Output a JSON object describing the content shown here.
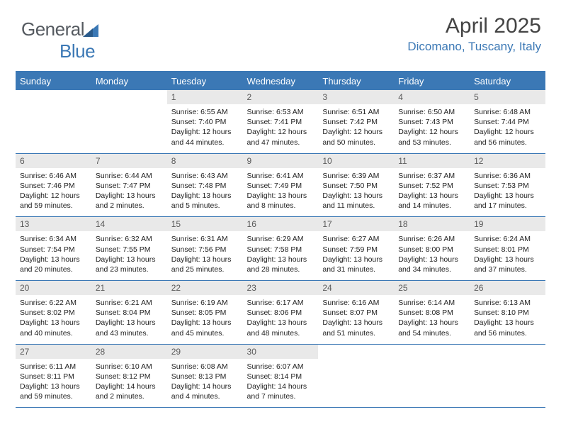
{
  "branding": {
    "logo_part1": "General",
    "logo_part2": "Blue"
  },
  "header": {
    "month_title": "April 2025",
    "location": "Dicomano, Tuscany, Italy"
  },
  "colors": {
    "accent": "#3b78b5",
    "daynum_bg": "#e9e9e9",
    "text": "#222222",
    "header_text": "#ffffff"
  },
  "typography": {
    "month_title_fontsize": 30,
    "location_fontsize": 17,
    "dayheader_fontsize": 13,
    "daynum_fontsize": 12,
    "body_fontsize": 10.5
  },
  "calendar": {
    "day_headers": [
      "Sunday",
      "Monday",
      "Tuesday",
      "Wednesday",
      "Thursday",
      "Friday",
      "Saturday"
    ],
    "weeks": [
      [
        {
          "num": "",
          "sunrise": "",
          "sunset": "",
          "daylight": ""
        },
        {
          "num": "",
          "sunrise": "",
          "sunset": "",
          "daylight": ""
        },
        {
          "num": "1",
          "sunrise": "Sunrise: 6:55 AM",
          "sunset": "Sunset: 7:40 PM",
          "daylight": "Daylight: 12 hours and 44 minutes."
        },
        {
          "num": "2",
          "sunrise": "Sunrise: 6:53 AM",
          "sunset": "Sunset: 7:41 PM",
          "daylight": "Daylight: 12 hours and 47 minutes."
        },
        {
          "num": "3",
          "sunrise": "Sunrise: 6:51 AM",
          "sunset": "Sunset: 7:42 PM",
          "daylight": "Daylight: 12 hours and 50 minutes."
        },
        {
          "num": "4",
          "sunrise": "Sunrise: 6:50 AM",
          "sunset": "Sunset: 7:43 PM",
          "daylight": "Daylight: 12 hours and 53 minutes."
        },
        {
          "num": "5",
          "sunrise": "Sunrise: 6:48 AM",
          "sunset": "Sunset: 7:44 PM",
          "daylight": "Daylight: 12 hours and 56 minutes."
        }
      ],
      [
        {
          "num": "6",
          "sunrise": "Sunrise: 6:46 AM",
          "sunset": "Sunset: 7:46 PM",
          "daylight": "Daylight: 12 hours and 59 minutes."
        },
        {
          "num": "7",
          "sunrise": "Sunrise: 6:44 AM",
          "sunset": "Sunset: 7:47 PM",
          "daylight": "Daylight: 13 hours and 2 minutes."
        },
        {
          "num": "8",
          "sunrise": "Sunrise: 6:43 AM",
          "sunset": "Sunset: 7:48 PM",
          "daylight": "Daylight: 13 hours and 5 minutes."
        },
        {
          "num": "9",
          "sunrise": "Sunrise: 6:41 AM",
          "sunset": "Sunset: 7:49 PM",
          "daylight": "Daylight: 13 hours and 8 minutes."
        },
        {
          "num": "10",
          "sunrise": "Sunrise: 6:39 AM",
          "sunset": "Sunset: 7:50 PM",
          "daylight": "Daylight: 13 hours and 11 minutes."
        },
        {
          "num": "11",
          "sunrise": "Sunrise: 6:37 AM",
          "sunset": "Sunset: 7:52 PM",
          "daylight": "Daylight: 13 hours and 14 minutes."
        },
        {
          "num": "12",
          "sunrise": "Sunrise: 6:36 AM",
          "sunset": "Sunset: 7:53 PM",
          "daylight": "Daylight: 13 hours and 17 minutes."
        }
      ],
      [
        {
          "num": "13",
          "sunrise": "Sunrise: 6:34 AM",
          "sunset": "Sunset: 7:54 PM",
          "daylight": "Daylight: 13 hours and 20 minutes."
        },
        {
          "num": "14",
          "sunrise": "Sunrise: 6:32 AM",
          "sunset": "Sunset: 7:55 PM",
          "daylight": "Daylight: 13 hours and 23 minutes."
        },
        {
          "num": "15",
          "sunrise": "Sunrise: 6:31 AM",
          "sunset": "Sunset: 7:56 PM",
          "daylight": "Daylight: 13 hours and 25 minutes."
        },
        {
          "num": "16",
          "sunrise": "Sunrise: 6:29 AM",
          "sunset": "Sunset: 7:58 PM",
          "daylight": "Daylight: 13 hours and 28 minutes."
        },
        {
          "num": "17",
          "sunrise": "Sunrise: 6:27 AM",
          "sunset": "Sunset: 7:59 PM",
          "daylight": "Daylight: 13 hours and 31 minutes."
        },
        {
          "num": "18",
          "sunrise": "Sunrise: 6:26 AM",
          "sunset": "Sunset: 8:00 PM",
          "daylight": "Daylight: 13 hours and 34 minutes."
        },
        {
          "num": "19",
          "sunrise": "Sunrise: 6:24 AM",
          "sunset": "Sunset: 8:01 PM",
          "daylight": "Daylight: 13 hours and 37 minutes."
        }
      ],
      [
        {
          "num": "20",
          "sunrise": "Sunrise: 6:22 AM",
          "sunset": "Sunset: 8:02 PM",
          "daylight": "Daylight: 13 hours and 40 minutes."
        },
        {
          "num": "21",
          "sunrise": "Sunrise: 6:21 AM",
          "sunset": "Sunset: 8:04 PM",
          "daylight": "Daylight: 13 hours and 43 minutes."
        },
        {
          "num": "22",
          "sunrise": "Sunrise: 6:19 AM",
          "sunset": "Sunset: 8:05 PM",
          "daylight": "Daylight: 13 hours and 45 minutes."
        },
        {
          "num": "23",
          "sunrise": "Sunrise: 6:17 AM",
          "sunset": "Sunset: 8:06 PM",
          "daylight": "Daylight: 13 hours and 48 minutes."
        },
        {
          "num": "24",
          "sunrise": "Sunrise: 6:16 AM",
          "sunset": "Sunset: 8:07 PM",
          "daylight": "Daylight: 13 hours and 51 minutes."
        },
        {
          "num": "25",
          "sunrise": "Sunrise: 6:14 AM",
          "sunset": "Sunset: 8:08 PM",
          "daylight": "Daylight: 13 hours and 54 minutes."
        },
        {
          "num": "26",
          "sunrise": "Sunrise: 6:13 AM",
          "sunset": "Sunset: 8:10 PM",
          "daylight": "Daylight: 13 hours and 56 minutes."
        }
      ],
      [
        {
          "num": "27",
          "sunrise": "Sunrise: 6:11 AM",
          "sunset": "Sunset: 8:11 PM",
          "daylight": "Daylight: 13 hours and 59 minutes."
        },
        {
          "num": "28",
          "sunrise": "Sunrise: 6:10 AM",
          "sunset": "Sunset: 8:12 PM",
          "daylight": "Daylight: 14 hours and 2 minutes."
        },
        {
          "num": "29",
          "sunrise": "Sunrise: 6:08 AM",
          "sunset": "Sunset: 8:13 PM",
          "daylight": "Daylight: 14 hours and 4 minutes."
        },
        {
          "num": "30",
          "sunrise": "Sunrise: 6:07 AM",
          "sunset": "Sunset: 8:14 PM",
          "daylight": "Daylight: 14 hours and 7 minutes."
        },
        {
          "num": "",
          "sunrise": "",
          "sunset": "",
          "daylight": ""
        },
        {
          "num": "",
          "sunrise": "",
          "sunset": "",
          "daylight": ""
        },
        {
          "num": "",
          "sunrise": "",
          "sunset": "",
          "daylight": ""
        }
      ]
    ]
  }
}
